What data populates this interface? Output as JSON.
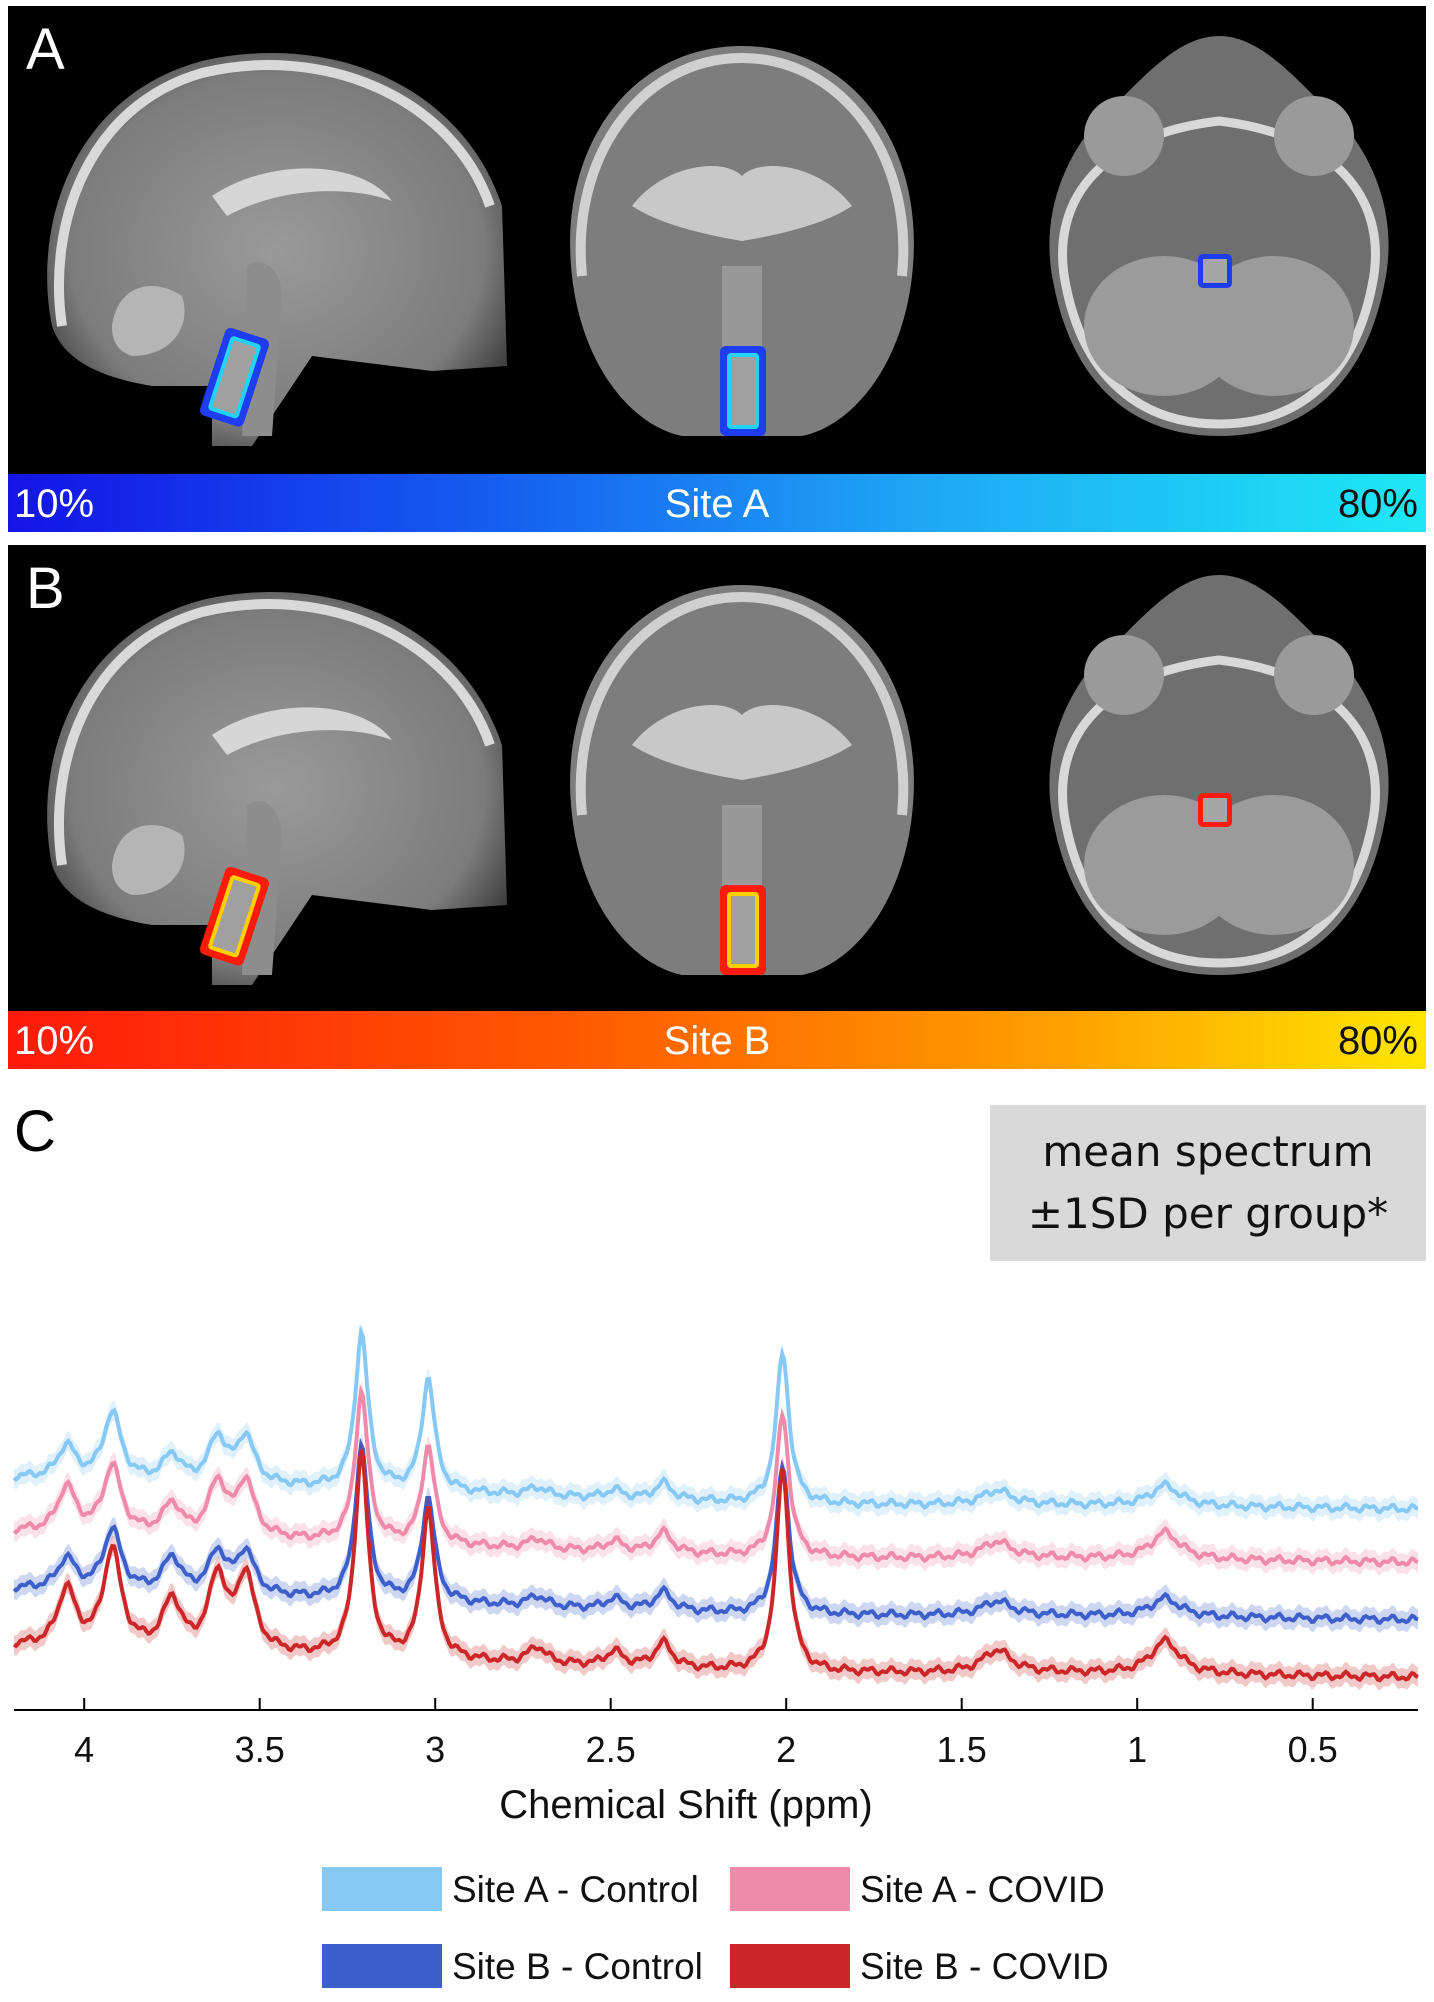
{
  "panel_a": {
    "letter": "A",
    "colorbar": {
      "left": "10%",
      "center": "Site A",
      "right": "80%"
    },
    "voxel_color": "#1e90ff"
  },
  "panel_b": {
    "letter": "B",
    "colorbar": {
      "left": "10%",
      "center": "Site B",
      "right": "80%"
    },
    "voxel_color": "#ff7a00"
  },
  "panel_c": {
    "letter": "C",
    "note": {
      "line1": "mean spectrum",
      "line2": "±1SD per group*"
    }
  },
  "chart_data": {
    "type": "line",
    "xlabel": "Chemical Shift (ppm)",
    "ylabel": "",
    "xlim": [
      4.2,
      0.2
    ],
    "x_reversed": true,
    "x_ticks": [
      "4",
      "3.5",
      "3",
      "2.5",
      "2",
      "1.5",
      "1",
      "0.5"
    ],
    "x_tick_values": [
      4,
      3.5,
      3,
      2.5,
      2,
      1.5,
      1,
      0.5
    ],
    "grid": false,
    "legend_position": "bottom",
    "peaks_ppm": [
      4.05,
      3.92,
      3.75,
      3.62,
      3.54,
      3.21,
      3.02,
      2.71,
      2.49,
      2.35,
      2.01,
      1.4,
      0.92
    ],
    "series": [
      {
        "name": "Site A - Control",
        "color": "#86c9f5",
        "baseline": 1.0,
        "peak_heights": [
          0.16,
          0.33,
          0.13,
          0.22,
          0.23,
          0.76,
          0.55,
          0.04,
          0.04,
          0.08,
          0.74,
          0.07,
          0.1
        ]
      },
      {
        "name": "Site A - COVID",
        "color": "#f08aab",
        "baseline": 0.74,
        "peak_heights": [
          0.22,
          0.33,
          0.15,
          0.26,
          0.27,
          0.73,
          0.48,
          0.05,
          0.05,
          0.1,
          0.7,
          0.08,
          0.13
        ]
      },
      {
        "name": "Site B - Control",
        "color": "#3d5fcc",
        "baseline": 0.46,
        "peak_heights": [
          0.15,
          0.3,
          0.17,
          0.2,
          0.21,
          0.75,
          0.51,
          0.05,
          0.05,
          0.09,
          0.73,
          0.07,
          0.09
        ]
      },
      {
        "name": "Site B - COVID",
        "color": "#cc2629",
        "baseline": 0.18,
        "peak_heights": [
          0.28,
          0.48,
          0.24,
          0.36,
          0.37,
          1.0,
          0.74,
          0.08,
          0.07,
          0.12,
          1.0,
          0.11,
          0.16
        ]
      }
    ]
  }
}
